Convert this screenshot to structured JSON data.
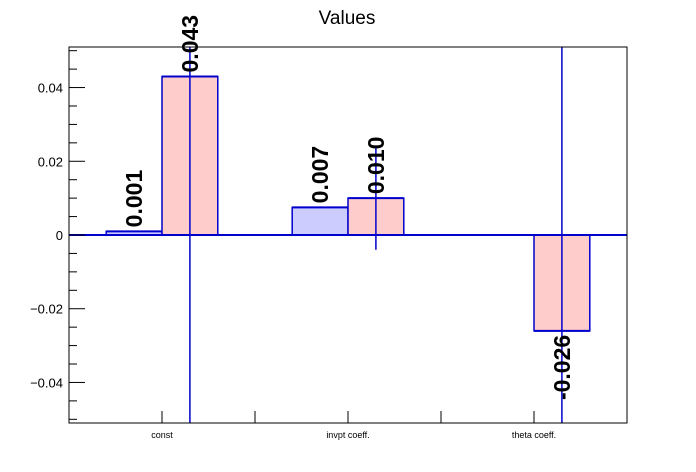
{
  "chart_data": {
    "type": "bar",
    "title": "Values",
    "xlabel": "",
    "ylabel": "",
    "categories": [
      "const",
      "invpt coeff.",
      "theta coeff."
    ],
    "series": [
      {
        "name": "",
        "values": [
          0.001,
          0.0075,
          null
        ],
        "labels": [
          "0.001",
          "0.007",
          ""
        ],
        "fill": "#ccccff",
        "stroke": "#0000cc"
      },
      {
        "name": "",
        "values": [
          0.043,
          0.01,
          -0.026
        ],
        "labels": [
          "0.043",
          "0.010",
          "-0.026"
        ],
        "errors": [
          0.1,
          0.014,
          0.1
        ],
        "fill": "#ffcccc",
        "stroke": "#0000cc"
      }
    ],
    "ylim": [
      -0.051,
      0.051
    ],
    "yticks": [
      -0.04,
      -0.02,
      0,
      0.02,
      0.04
    ],
    "ytick_labels": [
      "−0.04",
      "−0.02",
      "0",
      "0.02",
      "0.04"
    ],
    "grid": false,
    "axis_color": "#000000",
    "line_color": "#0000cc"
  }
}
